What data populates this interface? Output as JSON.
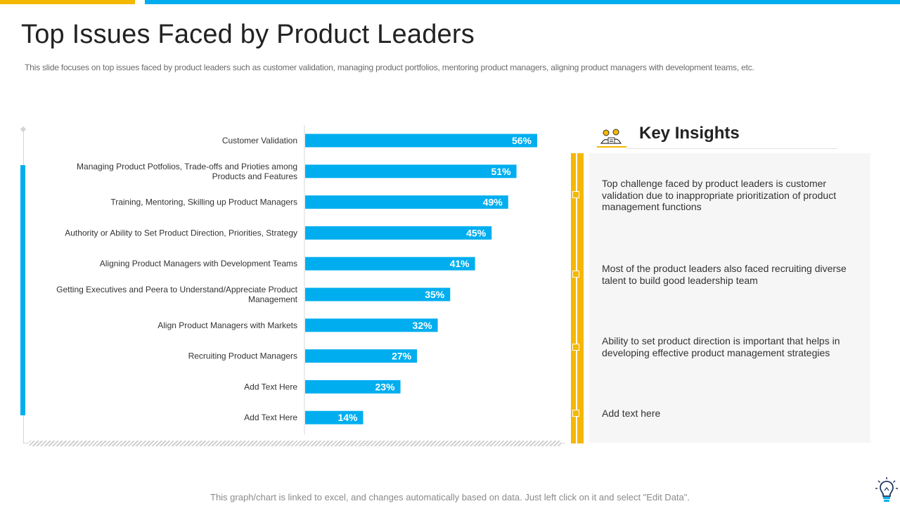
{
  "title": "Top Issues Faced by Product Leaders",
  "subtitle": "This slide focuses on top issues faced by product leaders such as customer validation, managing product portfolios, mentoring product managers, aligning product managers with development teams, etc.",
  "footer": "This graph/chart is linked to excel, and changes automatically based on data. Just left click on it and select \"Edit Data\".",
  "colors": {
    "bar": "#00aeef",
    "accent": "#f5b800",
    "bar_label": "#ffffff"
  },
  "chart_data": {
    "type": "bar",
    "orientation": "horizontal",
    "title": "",
    "xlabel": "",
    "ylabel": "",
    "xlim": [
      0,
      60
    ],
    "grid": false,
    "categories": [
      [
        "Customer Validation"
      ],
      [
        "Managing Product Potfolios, Trade-offs and Prioties among",
        "Products and Features"
      ],
      [
        "Training, Mentoring, Skilling up Product Managers"
      ],
      [
        "Authority or Ability to Set Product Direction, Priorities, Strategy"
      ],
      [
        "Aligning Product Managers with Development Teams"
      ],
      [
        "Getting Executives and Peera to Understand/Appreciate Product",
        "Management"
      ],
      [
        "Align Product Managers with Markets"
      ],
      [
        "Recruiting Product Managers"
      ],
      [
        "Add Text Here"
      ],
      [
        "Add Text Here"
      ]
    ],
    "values": [
      56,
      51,
      49,
      45,
      41,
      35,
      32,
      27,
      23,
      14
    ],
    "value_labels": [
      "56%",
      "51%",
      "49%",
      "45%",
      "41%",
      "35%",
      "32%",
      "27%",
      "23%",
      "14%"
    ]
  },
  "insights": {
    "title": "Key Insights",
    "icon": "team-insights-icon",
    "items": [
      "Top challenge faced by product leaders is customer validation due to inappropriate prioritization of product management functions",
      "Most of the product leaders also faced recruiting diverse talent to build good leadership team",
      "Ability to set product direction is important that helps in developing effective product management strategies",
      "Add text here"
    ]
  }
}
